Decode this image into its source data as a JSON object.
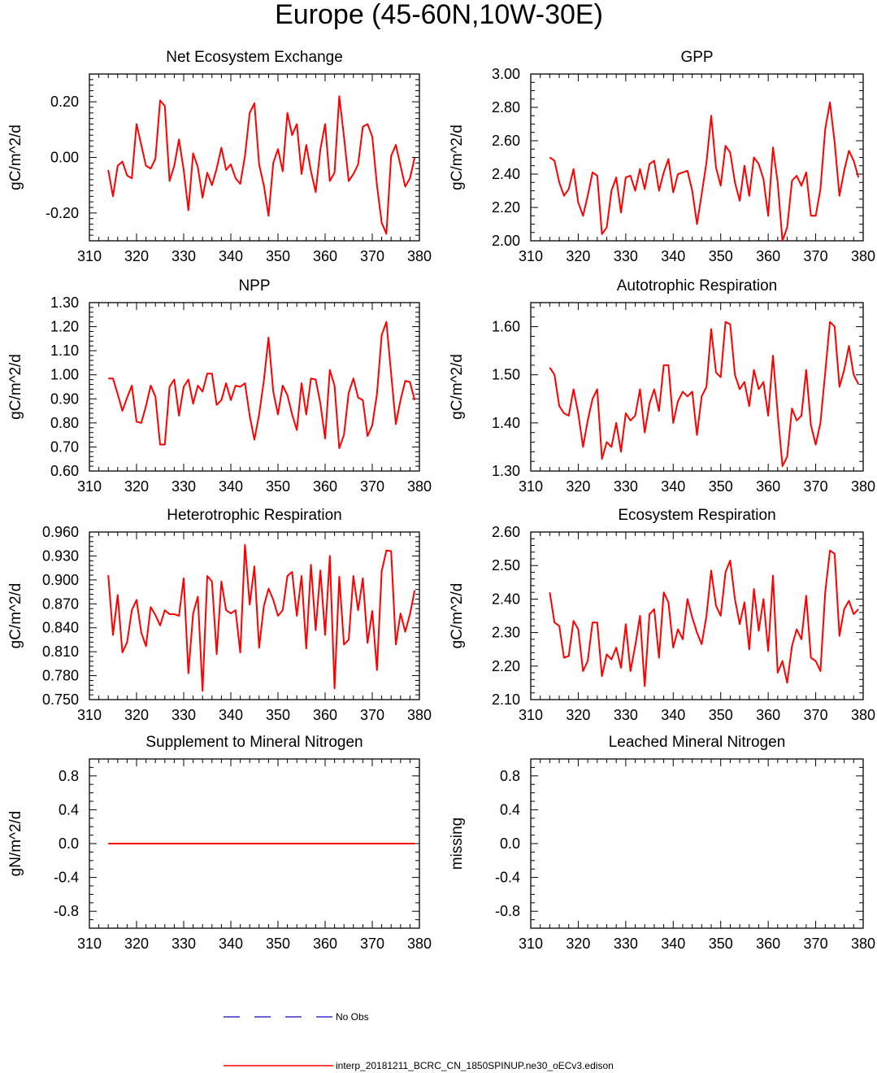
{
  "title": "Europe (45-60N,10W-30E)",
  "colors": {
    "model": "#ff0000",
    "obs": "#3333cc",
    "axis": "#000000"
  },
  "legend": {
    "obs_label": "No Obs",
    "model_label": "interp_20181211_BCRC_CN_1850SPINUP.ne30_oECv3.edison"
  },
  "chart_data": [
    {
      "type": "line",
      "title": "Net Ecosystem Exchange",
      "ylabel": "gC/m^2/d",
      "xlim": [
        310,
        380
      ],
      "ylim": [
        -0.3,
        0.3
      ],
      "xticks": [
        310,
        320,
        330,
        340,
        350,
        360,
        370,
        380
      ],
      "xtick_labels": [
        "310",
        "320",
        "330",
        "340",
        "350",
        "360",
        "370",
        "380"
      ],
      "yticks": [
        -0.2,
        0.0,
        0.2
      ],
      "ytick_labels": [
        "-0.20",
        "0.00",
        "0.20"
      ],
      "yminor": [
        -0.28,
        -0.26,
        -0.24,
        -0.22,
        -0.18,
        -0.16,
        -0.14,
        -0.12,
        -0.1,
        -0.08,
        -0.06,
        -0.04,
        -0.02,
        0.02,
        0.04,
        0.06,
        0.08,
        0.1,
        0.12,
        0.14,
        0.16,
        0.18,
        0.22,
        0.24,
        0.26,
        0.28
      ],
      "x_start": 314,
      "values": [
        -0.045,
        -0.14,
        -0.03,
        -0.015,
        -0.065,
        -0.075,
        0.12,
        0.045,
        -0.03,
        -0.04,
        -0.005,
        0.205,
        0.185,
        -0.085,
        -0.03,
        0.065,
        -0.045,
        -0.19,
        0.015,
        -0.035,
        -0.145,
        -0.055,
        -0.1,
        -0.04,
        0.035,
        -0.045,
        -0.025,
        -0.075,
        -0.095,
        0.005,
        0.16,
        0.195,
        -0.025,
        -0.1,
        -0.21,
        -0.02,
        0.03,
        -0.05,
        0.16,
        0.08,
        0.12,
        -0.06,
        0.045,
        -0.05,
        -0.125,
        0.03,
        0.12,
        -0.085,
        -0.055,
        0.22,
        0.075,
        -0.085,
        -0.06,
        -0.025,
        0.11,
        0.12,
        0.075,
        -0.1,
        -0.235,
        -0.275,
        0.005,
        0.045,
        -0.03,
        -0.105,
        -0.075,
        0.0
      ]
    },
    {
      "type": "line",
      "title": "GPP",
      "ylabel": "gC/m^2/d",
      "xlim": [
        310,
        380
      ],
      "ylim": [
        2.0,
        3.0
      ],
      "xticks": [
        310,
        320,
        330,
        340,
        350,
        360,
        370,
        380
      ],
      "xtick_labels": [
        "310",
        "320",
        "330",
        "340",
        "350",
        "360",
        "370",
        "380"
      ],
      "yticks": [
        2.0,
        2.2,
        2.4,
        2.6,
        2.8,
        3.0
      ],
      "ytick_labels": [
        "2.00",
        "2.20",
        "2.40",
        "2.60",
        "2.80",
        "3.00"
      ],
      "yminor": [
        2.05,
        2.1,
        2.15,
        2.25,
        2.3,
        2.35,
        2.45,
        2.5,
        2.55,
        2.65,
        2.7,
        2.75,
        2.85,
        2.9,
        2.95
      ],
      "x_start": 314,
      "values": [
        2.5,
        2.48,
        2.35,
        2.27,
        2.31,
        2.43,
        2.23,
        2.15,
        2.27,
        2.41,
        2.39,
        2.04,
        2.08,
        2.3,
        2.38,
        2.17,
        2.38,
        2.39,
        2.3,
        2.43,
        2.31,
        2.46,
        2.48,
        2.3,
        2.41,
        2.49,
        2.29,
        2.4,
        2.41,
        2.42,
        2.3,
        2.1,
        2.28,
        2.47,
        2.75,
        2.44,
        2.33,
        2.57,
        2.53,
        2.35,
        2.24,
        2.45,
        2.27,
        2.5,
        2.46,
        2.37,
        2.15,
        2.56,
        2.35,
        2.0,
        2.08,
        2.36,
        2.39,
        2.33,
        2.41,
        2.15,
        2.15,
        2.31,
        2.67,
        2.83,
        2.59,
        2.27,
        2.42,
        2.54,
        2.48,
        2.38
      ]
    },
    {
      "type": "line",
      "title": "NPP",
      "ylabel": "gC/m^2/d",
      "xlim": [
        310,
        380
      ],
      "ylim": [
        0.6,
        1.3
      ],
      "xticks": [
        310,
        320,
        330,
        340,
        350,
        360,
        370,
        380
      ],
      "xtick_labels": [
        "310",
        "320",
        "330",
        "340",
        "350",
        "360",
        "370",
        "380"
      ],
      "yticks": [
        0.6,
        0.7,
        0.8,
        0.9,
        1.0,
        1.1,
        1.2,
        1.3
      ],
      "ytick_labels": [
        "0.60",
        "0.70",
        "0.80",
        "0.90",
        "1.00",
        "1.10",
        "1.20",
        "1.30"
      ],
      "yminor": [
        0.62,
        0.64,
        0.66,
        0.68,
        0.72,
        0.74,
        0.76,
        0.78,
        0.82,
        0.84,
        0.86,
        0.88,
        0.92,
        0.94,
        0.96,
        0.98,
        1.02,
        1.04,
        1.06,
        1.08,
        1.12,
        1.14,
        1.16,
        1.18,
        1.22,
        1.24,
        1.26,
        1.28
      ],
      "x_start": 314,
      "values": [
        0.985,
        0.985,
        0.92,
        0.85,
        0.905,
        0.955,
        0.805,
        0.8,
        0.87,
        0.955,
        0.91,
        0.71,
        0.71,
        0.95,
        0.98,
        0.83,
        0.95,
        0.98,
        0.88,
        0.955,
        0.93,
        1.005,
        1.005,
        0.875,
        0.895,
        0.965,
        0.895,
        0.955,
        0.95,
        0.965,
        0.83,
        0.73,
        0.835,
        0.975,
        1.155,
        0.93,
        0.835,
        0.955,
        0.915,
        0.835,
        0.77,
        0.965,
        0.835,
        0.985,
        0.98,
        0.88,
        0.735,
        1.02,
        0.955,
        0.695,
        0.75,
        0.925,
        0.985,
        0.905,
        0.895,
        0.745,
        0.79,
        0.92,
        1.165,
        1.22,
        1.005,
        0.795,
        0.895,
        0.975,
        0.97,
        0.895
      ]
    },
    {
      "type": "line",
      "title": "Autotrophic Respiration",
      "ylabel": "gC/m^2/d",
      "xlim": [
        310,
        380
      ],
      "ylim": [
        1.3,
        1.65
      ],
      "xticks": [
        310,
        320,
        330,
        340,
        350,
        360,
        370,
        380
      ],
      "xtick_labels": [
        "310",
        "320",
        "330",
        "340",
        "350",
        "360",
        "370",
        "380"
      ],
      "yticks": [
        1.3,
        1.4,
        1.5,
        1.6
      ],
      "ytick_labels": [
        "1.30",
        "1.40",
        "1.50",
        "1.60"
      ],
      "yminor": [
        1.32,
        1.34,
        1.36,
        1.38,
        1.42,
        1.44,
        1.46,
        1.48,
        1.52,
        1.54,
        1.56,
        1.58,
        1.62,
        1.64
      ],
      "x_start": 314,
      "values": [
        1.515,
        1.5,
        1.435,
        1.42,
        1.415,
        1.47,
        1.42,
        1.35,
        1.405,
        1.45,
        1.47,
        1.325,
        1.36,
        1.35,
        1.4,
        1.34,
        1.42,
        1.405,
        1.415,
        1.47,
        1.38,
        1.44,
        1.47,
        1.425,
        1.52,
        1.52,
        1.4,
        1.445,
        1.465,
        1.455,
        1.465,
        1.375,
        1.455,
        1.475,
        1.595,
        1.505,
        1.495,
        1.61,
        1.605,
        1.5,
        1.47,
        1.485,
        1.435,
        1.51,
        1.47,
        1.485,
        1.415,
        1.54,
        1.42,
        1.31,
        1.33,
        1.43,
        1.405,
        1.415,
        1.51,
        1.395,
        1.355,
        1.4,
        1.505,
        1.61,
        1.6,
        1.475,
        1.51,
        1.56,
        1.5,
        1.48
      ]
    },
    {
      "type": "line",
      "title": "Heterotrophic Respiration",
      "ylabel": "gC/m^2/d",
      "xlim": [
        310,
        380
      ],
      "ylim": [
        0.75,
        0.96
      ],
      "xticks": [
        310,
        320,
        330,
        340,
        350,
        360,
        370,
        380
      ],
      "xtick_labels": [
        "310",
        "320",
        "330",
        "340",
        "350",
        "360",
        "370",
        "380"
      ],
      "yticks": [
        0.75,
        0.78,
        0.81,
        0.84,
        0.87,
        0.9,
        0.93,
        0.96
      ],
      "ytick_labels": [
        "0.750",
        "0.780",
        "0.810",
        "0.840",
        "0.870",
        "0.900",
        "0.930",
        "0.960"
      ],
      "yminor": [
        0.756,
        0.762,
        0.768,
        0.774,
        0.786,
        0.792,
        0.798,
        0.804,
        0.816,
        0.822,
        0.828,
        0.834,
        0.846,
        0.852,
        0.858,
        0.864,
        0.876,
        0.882,
        0.888,
        0.894,
        0.906,
        0.912,
        0.918,
        0.924,
        0.936,
        0.942,
        0.948,
        0.954
      ],
      "x_start": 314,
      "values": [
        0.906,
        0.831,
        0.881,
        0.809,
        0.822,
        0.862,
        0.875,
        0.834,
        0.817,
        0.866,
        0.856,
        0.843,
        0.862,
        0.857,
        0.857,
        0.855,
        0.902,
        0.783,
        0.858,
        0.879,
        0.761,
        0.905,
        0.898,
        0.807,
        0.898,
        0.862,
        0.858,
        0.862,
        0.809,
        0.944,
        0.869,
        0.917,
        0.815,
        0.867,
        0.889,
        0.875,
        0.855,
        0.862,
        0.905,
        0.91,
        0.855,
        0.905,
        0.814,
        0.919,
        0.837,
        0.912,
        0.831,
        0.93,
        0.764,
        0.904,
        0.819,
        0.825,
        0.905,
        0.862,
        0.902,
        0.821,
        0.861,
        0.787,
        0.911,
        0.937,
        0.936,
        0.819,
        0.858,
        0.835,
        0.857,
        0.887
      ]
    },
    {
      "type": "line",
      "title": "Ecosystem Respiration",
      "ylabel": "gC/m^2/d",
      "xlim": [
        310,
        380
      ],
      "ylim": [
        2.1,
        2.6
      ],
      "xticks": [
        310,
        320,
        330,
        340,
        350,
        360,
        370,
        380
      ],
      "xtick_labels": [
        "310",
        "320",
        "330",
        "340",
        "350",
        "360",
        "370",
        "380"
      ],
      "yticks": [
        2.1,
        2.2,
        2.3,
        2.4,
        2.5,
        2.6
      ],
      "ytick_labels": [
        "2.10",
        "2.20",
        "2.30",
        "2.40",
        "2.50",
        "2.60"
      ],
      "yminor": [
        2.12,
        2.14,
        2.16,
        2.18,
        2.22,
        2.24,
        2.26,
        2.28,
        2.32,
        2.34,
        2.36,
        2.38,
        2.42,
        2.44,
        2.46,
        2.48,
        2.52,
        2.54,
        2.56,
        2.58
      ],
      "x_start": 314,
      "values": [
        2.42,
        2.33,
        2.32,
        2.225,
        2.23,
        2.335,
        2.31,
        2.185,
        2.215,
        2.33,
        2.33,
        2.17,
        2.235,
        2.22,
        2.255,
        2.195,
        2.325,
        2.185,
        2.26,
        2.35,
        2.14,
        2.355,
        2.37,
        2.225,
        2.42,
        2.39,
        2.255,
        2.31,
        2.28,
        2.4,
        2.345,
        2.3,
        2.265,
        2.35,
        2.485,
        2.38,
        2.35,
        2.48,
        2.515,
        2.4,
        2.325,
        2.39,
        2.25,
        2.43,
        2.305,
        2.4,
        2.245,
        2.47,
        2.18,
        2.215,
        2.15,
        2.26,
        2.31,
        2.28,
        2.41,
        2.225,
        2.215,
        2.185,
        2.42,
        2.545,
        2.535,
        2.29,
        2.37,
        2.395,
        2.355,
        2.37
      ]
    },
    {
      "type": "line",
      "title": "Supplement to Mineral Nitrogen",
      "ylabel": "gN/m^2/d",
      "xlim": [
        310,
        380
      ],
      "ylim": [
        -1.0,
        1.0
      ],
      "xticks": [
        310,
        320,
        330,
        340,
        350,
        360,
        370,
        380
      ],
      "xtick_labels": [
        "310",
        "320",
        "330",
        "340",
        "350",
        "360",
        "370",
        "380"
      ],
      "yticks": [
        -0.8,
        -0.4,
        0.0,
        0.4,
        0.8
      ],
      "ytick_labels": [
        "-0.8",
        "-0.4",
        "0.0",
        "0.4",
        "0.8"
      ],
      "yminor": [
        -0.9,
        -0.7,
        -0.6,
        -0.5,
        -0.3,
        -0.2,
        -0.1,
        0.1,
        0.2,
        0.3,
        0.5,
        0.6,
        0.7,
        0.9
      ],
      "x_start": 314,
      "values": [
        0,
        0,
        0,
        0,
        0,
        0,
        0,
        0,
        0,
        0,
        0,
        0,
        0,
        0,
        0,
        0,
        0,
        0,
        0,
        0,
        0,
        0,
        0,
        0,
        0,
        0,
        0,
        0,
        0,
        0,
        0,
        0,
        0,
        0,
        0,
        0,
        0,
        0,
        0,
        0,
        0,
        0,
        0,
        0,
        0,
        0,
        0,
        0,
        0,
        0,
        0,
        0,
        0,
        0,
        0,
        0,
        0,
        0,
        0,
        0,
        0,
        0,
        0,
        0,
        0,
        0
      ]
    },
    {
      "type": "line",
      "title": "Leached Mineral Nitrogen",
      "ylabel": "missing",
      "xlim": [
        310,
        380
      ],
      "ylim": [
        -1.0,
        1.0
      ],
      "xticks": [
        310,
        320,
        330,
        340,
        350,
        360,
        370,
        380
      ],
      "xtick_labels": [
        "310",
        "320",
        "330",
        "340",
        "350",
        "360",
        "370",
        "380"
      ],
      "yticks": [
        -0.8,
        -0.4,
        0.0,
        0.4,
        0.8
      ],
      "ytick_labels": [
        "-0.8",
        "-0.4",
        "0.0",
        "0.4",
        "0.8"
      ],
      "yminor": [
        -0.9,
        -0.7,
        -0.6,
        -0.5,
        -0.3,
        -0.2,
        -0.1,
        0.1,
        0.2,
        0.3,
        0.5,
        0.6,
        0.7,
        0.9
      ],
      "x_start": 314,
      "values": []
    }
  ]
}
